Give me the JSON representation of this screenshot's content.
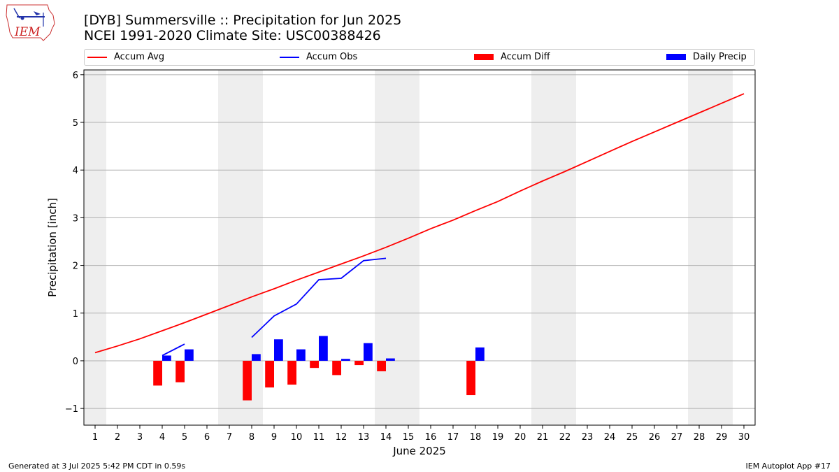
{
  "title_line1": "[DYB] Summersville :: Precipitation for Jun 2025",
  "title_line2": "NCEI 1991-2020 Climate Site: USC00388426",
  "logo_text": "IEM",
  "footer_left": "Generated at 3 Jul 2025 5:42 PM CDT in 0.59s",
  "footer_right": "IEM Autoplot App #17",
  "legend": [
    {
      "label": "Accum Avg",
      "kind": "line",
      "color": "#ff0000"
    },
    {
      "label": "Accum Obs",
      "kind": "line",
      "color": "#0000ff"
    },
    {
      "label": "Accum Diff",
      "kind": "bar",
      "color": "#ff0000"
    },
    {
      "label": "Daily Precip",
      "kind": "bar",
      "color": "#0000ff"
    }
  ],
  "chart_data": {
    "type": "bar",
    "xlabel": "June 2025",
    "ylabel": "Precipitation [inch]",
    "xlim": [
      0.5,
      30.5
    ],
    "ylim": [
      -1.35,
      6.1
    ],
    "xticks": [
      1,
      2,
      3,
      4,
      5,
      6,
      7,
      8,
      9,
      10,
      11,
      12,
      13,
      14,
      15,
      16,
      17,
      18,
      19,
      20,
      21,
      22,
      23,
      24,
      25,
      26,
      27,
      28,
      29,
      30
    ],
    "yticks": [
      -1,
      0,
      1,
      2,
      3,
      4,
      5,
      6
    ],
    "grid": "horizontal",
    "weekend_shading": [
      [
        0.5,
        1.5
      ],
      [
        6.5,
        8.5
      ],
      [
        13.5,
        15.5
      ],
      [
        20.5,
        22.5
      ],
      [
        27.5,
        29.5
      ]
    ],
    "accum_avg": {
      "name": "Accum Avg",
      "color": "#ff0000",
      "x": [
        1,
        2,
        3,
        4,
        5,
        6,
        7,
        8,
        9,
        10,
        11,
        12,
        13,
        14,
        15,
        16,
        17,
        18,
        19,
        20,
        21,
        22,
        23,
        24,
        25,
        26,
        27,
        28,
        29,
        30
      ],
      "y": [
        0.17,
        0.31,
        0.46,
        0.63,
        0.8,
        0.98,
        1.16,
        1.34,
        1.51,
        1.69,
        1.86,
        2.03,
        2.2,
        2.38,
        2.57,
        2.77,
        2.95,
        3.15,
        3.34,
        3.56,
        3.77,
        3.97,
        4.18,
        4.39,
        4.6,
        4.8,
        5.0,
        5.2,
        5.4,
        5.6
      ]
    },
    "accum_obs": {
      "name": "Accum Obs",
      "color": "#0000ff",
      "segments": [
        {
          "x": [
            4,
            5
          ],
          "y": [
            0.11,
            0.35
          ]
        },
        {
          "x": [
            8,
            9,
            10,
            11,
            12,
            13,
            14
          ],
          "y": [
            0.49,
            0.94,
            1.19,
            1.7,
            1.73,
            2.1,
            2.15
          ]
        }
      ]
    },
    "accum_diff": {
      "name": "Accum Diff",
      "color": "#ff0000",
      "x": [
        4,
        5,
        8,
        9,
        10,
        11,
        12,
        13,
        14,
        18
      ],
      "values": [
        -0.52,
        -0.45,
        -0.83,
        -0.56,
        -0.5,
        -0.15,
        -0.3,
        -0.09,
        -0.22,
        -0.72
      ]
    },
    "daily_precip": {
      "name": "Daily Precip",
      "color": "#0000ff",
      "x": [
        4,
        5,
        8,
        9,
        10,
        11,
        12,
        13,
        14,
        18
      ],
      "values": [
        0.11,
        0.24,
        0.14,
        0.45,
        0.24,
        0.52,
        0.04,
        0.37,
        0.05,
        0.28
      ]
    }
  }
}
